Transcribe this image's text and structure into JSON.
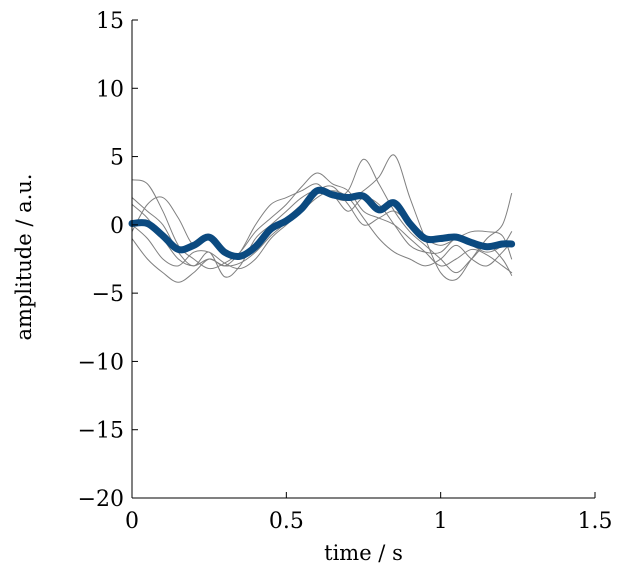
{
  "chart_data": {
    "type": "line",
    "title": "",
    "xlabel": "time / s",
    "ylabel": "amplitude / a.u.",
    "xlim": [
      0,
      1.5
    ],
    "ylim": [
      -20,
      15
    ],
    "x_ticks": [
      0,
      0.5,
      1,
      1.5
    ],
    "x_tick_labels": [
      "0",
      "0.5",
      "1",
      "1.5"
    ],
    "y_ticks": [
      -20,
      -15,
      -10,
      -5,
      0,
      5,
      10,
      15
    ],
    "y_tick_labels": [
      "−20",
      "−15",
      "−10",
      "−5",
      "0",
      "5",
      "10",
      "15"
    ],
    "grid": false,
    "legend": "none",
    "colors": {
      "thin": "#808080",
      "mean": "#0b4a80",
      "axis": "#000000"
    },
    "x": [
      0,
      0.05,
      0.1,
      0.15,
      0.2,
      0.25,
      0.3,
      0.35,
      0.4,
      0.45,
      0.5,
      0.55,
      0.6,
      0.65,
      0.7,
      0.75,
      0.8,
      0.85,
      0.9,
      0.95,
      1.0,
      1.05,
      1.1,
      1.15,
      1.2,
      1.23
    ],
    "series": [
      {
        "role": "trial",
        "values": [
          3.3,
          3.0,
          1.0,
          -1.5,
          -2.5,
          -3.2,
          -2.8,
          -2.0,
          -0.5,
          0.5,
          1.5,
          2.8,
          3.8,
          3.0,
          2.5,
          1.0,
          0.5,
          0.0,
          -1.0,
          -2.0,
          -3.0,
          -2.5,
          -1.8,
          -2.2,
          -3.0,
          -3.5
        ]
      },
      {
        "role": "trial",
        "values": [
          -1.0,
          -2.5,
          -3.5,
          -4.2,
          -3.5,
          -2.5,
          -3.0,
          -2.0,
          0.0,
          1.5,
          2.0,
          2.5,
          3.0,
          2.0,
          2.5,
          4.8,
          3.0,
          1.0,
          -0.5,
          -1.5,
          -2.5,
          -3.5,
          -2.5,
          -1.5,
          -2.5,
          -3.7
        ]
      },
      {
        "role": "trial",
        "values": [
          2.0,
          1.0,
          0.0,
          -2.0,
          -3.0,
          -2.0,
          -3.8,
          -3.0,
          -1.0,
          0.0,
          1.0,
          2.0,
          2.5,
          2.0,
          1.8,
          2.5,
          3.5,
          5.1,
          2.0,
          -1.0,
          -3.5,
          -4.0,
          -2.5,
          -1.0,
          0.0,
          2.3
        ]
      },
      {
        "role": "trial",
        "values": [
          -0.5,
          1.5,
          2.0,
          0.5,
          -1.5,
          -1.0,
          -2.0,
          -2.5,
          -1.5,
          -0.5,
          0.5,
          1.5,
          2.5,
          2.8,
          1.5,
          0.0,
          0.5,
          1.0,
          0.0,
          -1.0,
          -1.5,
          -1.0,
          -0.5,
          -0.5,
          -0.8,
          -2.5
        ]
      },
      {
        "role": "trial",
        "values": [
          0.0,
          -1.0,
          -2.5,
          -3.0,
          -2.0,
          -2.0,
          -2.8,
          -3.2,
          -2.5,
          -1.0,
          0.0,
          1.0,
          2.0,
          2.5,
          2.0,
          0.5,
          -1.0,
          -2.0,
          -2.5,
          -3.0,
          -2.5,
          -1.5,
          -2.5,
          -3.0,
          -2.0,
          -1.2
        ]
      },
      {
        "role": "trial",
        "values": [
          1.5,
          0.5,
          -1.0,
          -2.5,
          -3.0,
          -2.5,
          -3.0,
          -2.8,
          -2.0,
          -0.8,
          0.2,
          1.5,
          2.5,
          2.2,
          1.0,
          2.0,
          1.5,
          0.0,
          -1.5,
          -2.0,
          -2.0,
          -1.0,
          -1.5,
          -2.0,
          -1.5,
          -0.5
        ]
      },
      {
        "role": "mean",
        "values": [
          0.1,
          0.1,
          -0.8,
          -1.8,
          -1.5,
          -0.9,
          -2.0,
          -2.3,
          -1.6,
          -0.3,
          0.3,
          1.2,
          2.5,
          2.2,
          2.0,
          2.1,
          1.1,
          1.6,
          0.1,
          -1.0,
          -1.0,
          -0.9,
          -1.3,
          -1.6,
          -1.4,
          -1.4
        ]
      }
    ]
  }
}
